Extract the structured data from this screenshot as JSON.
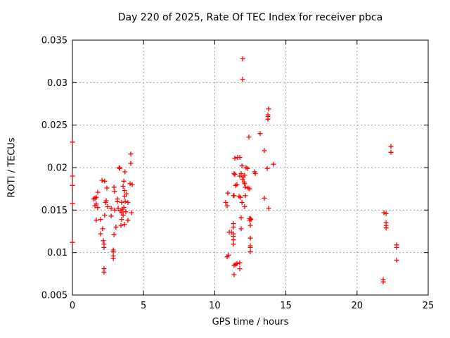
{
  "title": "Day 220 of 2025, Rate Of TEC Index for receiver pbca",
  "chart_data": {
    "type": "scatter",
    "title": "Day 220 of 2025, Rate Of TEC Index for receiver pbca",
    "xlabel": "GPS time / hours",
    "ylabel": "ROTI / TECUs",
    "xlim": [
      0,
      25
    ],
    "ylim": [
      0.005,
      0.035
    ],
    "x_ticks": [
      "0",
      "5",
      "10",
      "15",
      "20",
      "25"
    ],
    "y_ticks": [
      "0.005",
      "0.01",
      "0.015",
      "0.02",
      "0.025",
      "0.03",
      "0.035"
    ],
    "grid": true,
    "legend": "none",
    "marker": "plus",
    "marker_color": "#ff0000",
    "grid_color": "#a0a0a0",
    "frame_color": "#000000",
    "series": [
      {
        "name": "ROTI",
        "points": [
          [
            0.0,
            0.023
          ],
          [
            0.0,
            0.019
          ],
          [
            0.0,
            0.0179
          ],
          [
            0.0,
            0.0158
          ],
          [
            0.0,
            0.0112
          ],
          [
            4.1,
            0.0216
          ],
          [
            4.1,
            0.0205
          ],
          [
            3.28,
            0.02
          ],
          [
            3.33,
            0.0199
          ],
          [
            3.69,
            0.0195
          ],
          [
            3.61,
            0.0184
          ],
          [
            4.05,
            0.0181
          ],
          [
            2.08,
            0.0185
          ],
          [
            2.27,
            0.0184
          ],
          [
            4.2,
            0.018
          ],
          [
            2.42,
            0.0176
          ],
          [
            2.92,
            0.0177
          ],
          [
            3.56,
            0.0178
          ],
          [
            1.78,
            0.0171
          ],
          [
            2.96,
            0.0172
          ],
          [
            3.66,
            0.0173
          ],
          [
            3.8,
            0.0169
          ],
          [
            1.68,
            0.0165
          ],
          [
            1.58,
            0.0164
          ],
          [
            2.32,
            0.0159
          ],
          [
            3.16,
            0.016
          ],
          [
            3.46,
            0.0159
          ],
          [
            3.71,
            0.016
          ],
          [
            3.9,
            0.0159
          ],
          [
            1.68,
            0.0157
          ],
          [
            1.78,
            0.0153
          ],
          [
            1.48,
            0.0163
          ],
          [
            2.37,
            0.0161
          ],
          [
            3.16,
            0.0163
          ],
          [
            3.66,
            0.0166
          ],
          [
            1.58,
            0.0155
          ],
          [
            2.47,
            0.0154
          ],
          [
            2.72,
            0.0152
          ],
          [
            2.96,
            0.015
          ],
          [
            3.21,
            0.0152
          ],
          [
            3.36,
            0.0149
          ],
          [
            3.46,
            0.0149
          ],
          [
            3.46,
            0.0147
          ],
          [
            3.51,
            0.0151
          ],
          [
            3.75,
            0.0148
          ],
          [
            4.15,
            0.0147
          ],
          [
            2.27,
            0.0144
          ],
          [
            2.72,
            0.0143
          ],
          [
            3.46,
            0.0139
          ],
          [
            1.68,
            0.0138
          ],
          [
            1.98,
            0.0139
          ],
          [
            3.9,
            0.0138
          ],
          [
            3.06,
            0.013
          ],
          [
            3.41,
            0.0132
          ],
          [
            3.66,
            0.0133
          ],
          [
            2.12,
            0.0128
          ],
          [
            1.98,
            0.0122
          ],
          [
            2.92,
            0.0121
          ],
          [
            2.17,
            0.0114
          ],
          [
            2.22,
            0.011
          ],
          [
            2.22,
            0.0106
          ],
          [
            2.87,
            0.0103
          ],
          [
            2.87,
            0.0101
          ],
          [
            2.87,
            0.0096
          ],
          [
            2.87,
            0.0093
          ],
          [
            2.22,
            0.0081
          ],
          [
            2.22,
            0.0077
          ],
          [
            3.61,
            0.0153
          ],
          [
            3.56,
            0.0144
          ],
          [
            11.96,
            0.0328
          ],
          [
            11.96,
            0.0304
          ],
          [
            13.79,
            0.0269
          ],
          [
            13.74,
            0.0262
          ],
          [
            13.74,
            0.026
          ],
          [
            13.74,
            0.0257
          ],
          [
            13.19,
            0.024
          ],
          [
            12.4,
            0.0236
          ],
          [
            13.49,
            0.022
          ],
          [
            11.41,
            0.0211
          ],
          [
            11.61,
            0.0212
          ],
          [
            11.76,
            0.0212
          ],
          [
            11.91,
            0.0202
          ],
          [
            12.2,
            0.02
          ],
          [
            12.3,
            0.0199
          ],
          [
            13.69,
            0.0199
          ],
          [
            14.13,
            0.0204
          ],
          [
            12.8,
            0.0195
          ],
          [
            12.85,
            0.0193
          ],
          [
            11.36,
            0.0193
          ],
          [
            11.86,
            0.0193
          ],
          [
            11.41,
            0.0192
          ],
          [
            11.76,
            0.019
          ],
          [
            12.01,
            0.0189
          ],
          [
            12.1,
            0.0191
          ],
          [
            11.96,
            0.0186
          ],
          [
            12.06,
            0.0183
          ],
          [
            12.1,
            0.0181
          ],
          [
            11.46,
            0.0179
          ],
          [
            11.56,
            0.018
          ],
          [
            12.15,
            0.0177
          ],
          [
            12.35,
            0.0176
          ],
          [
            12.45,
            0.0175
          ],
          [
            10.92,
            0.017
          ],
          [
            11.31,
            0.0167
          ],
          [
            11.36,
            0.0167
          ],
          [
            11.71,
            0.0166
          ],
          [
            11.81,
            0.0165
          ],
          [
            12.15,
            0.0167
          ],
          [
            13.49,
            0.0164
          ],
          [
            11.91,
            0.0159
          ],
          [
            10.77,
            0.0159
          ],
          [
            10.87,
            0.0155
          ],
          [
            12.1,
            0.0154
          ],
          [
            13.79,
            0.0152
          ],
          [
            11.86,
            0.0141
          ],
          [
            12.45,
            0.014
          ],
          [
            12.5,
            0.014
          ],
          [
            12.55,
            0.0139
          ],
          [
            12.45,
            0.0138
          ],
          [
            11.31,
            0.0134
          ],
          [
            11.31,
            0.013
          ],
          [
            11.86,
            0.0128
          ],
          [
            12.5,
            0.0132
          ],
          [
            11.02,
            0.0124
          ],
          [
            11.17,
            0.0124
          ],
          [
            11.31,
            0.0122
          ],
          [
            11.31,
            0.0119
          ],
          [
            11.31,
            0.0115
          ],
          [
            11.31,
            0.011
          ],
          [
            12.5,
            0.0117
          ],
          [
            12.5,
            0.0108
          ],
          [
            12.5,
            0.0106
          ],
          [
            12.5,
            0.0101
          ],
          [
            10.97,
            0.0097
          ],
          [
            10.87,
            0.0095
          ],
          [
            11.36,
            0.0085
          ],
          [
            11.46,
            0.0086
          ],
          [
            11.56,
            0.0087
          ],
          [
            11.76,
            0.0088
          ],
          [
            11.76,
            0.0081
          ],
          [
            11.36,
            0.0074
          ],
          [
            22.38,
            0.0225
          ],
          [
            22.38,
            0.0218
          ],
          [
            21.89,
            0.0147
          ],
          [
            22.04,
            0.0146
          ],
          [
            22.04,
            0.0135
          ],
          [
            22.04,
            0.0132
          ],
          [
            22.04,
            0.0129
          ],
          [
            22.78,
            0.0109
          ],
          [
            22.78,
            0.0106
          ],
          [
            22.78,
            0.0091
          ],
          [
            21.84,
            0.0068
          ],
          [
            21.84,
            0.00655
          ]
        ]
      }
    ]
  }
}
